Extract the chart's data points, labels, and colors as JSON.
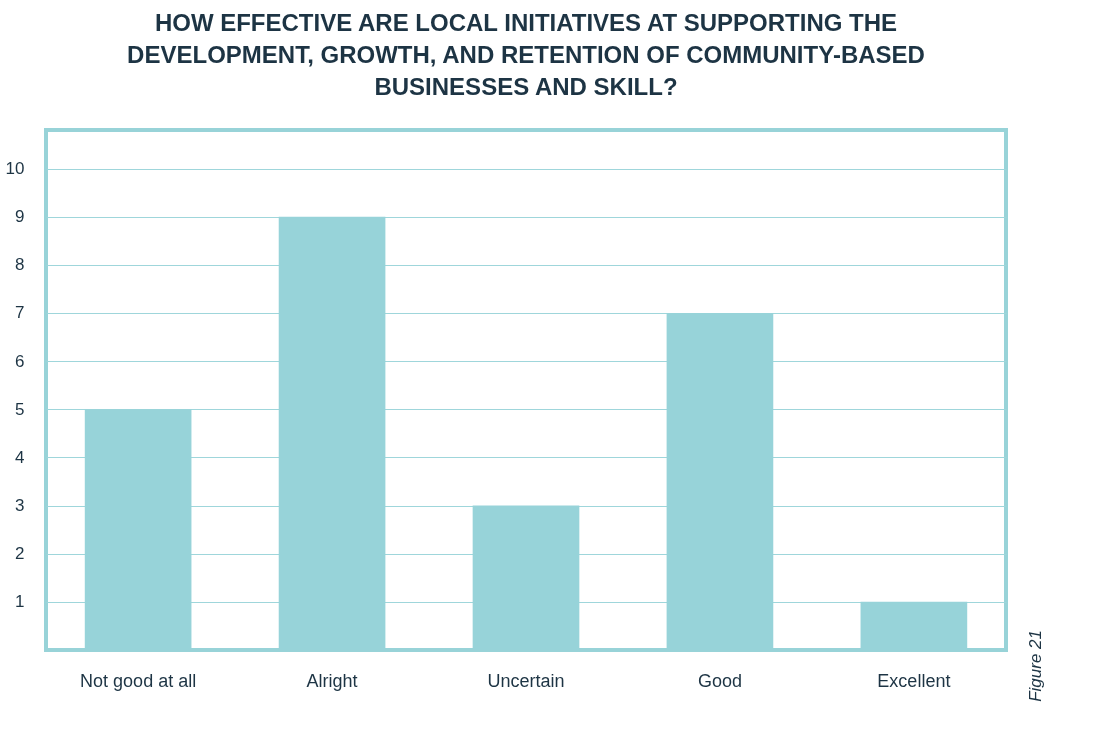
{
  "chart_data": {
    "type": "bar",
    "title": "HOW EFFECTIVE ARE LOCAL INITIATIVES AT SUPPORTING THE DEVELOPMENT, GROWTH, AND RETENTION OF COMMUNITY-BASED BUSINESSES AND SKILL?",
    "categories": [
      "Not good at all",
      "Alright",
      "Uncertain",
      "Good",
      "Excellent"
    ],
    "values": [
      5,
      9,
      3,
      7,
      1
    ],
    "color": "#97d3d9",
    "ylim": [
      0,
      10.8
    ],
    "yticks": [
      1,
      2,
      3,
      4,
      5,
      6,
      7,
      8,
      9,
      10
    ],
    "grid": "y",
    "annotations": [
      "Figure 21"
    ]
  }
}
